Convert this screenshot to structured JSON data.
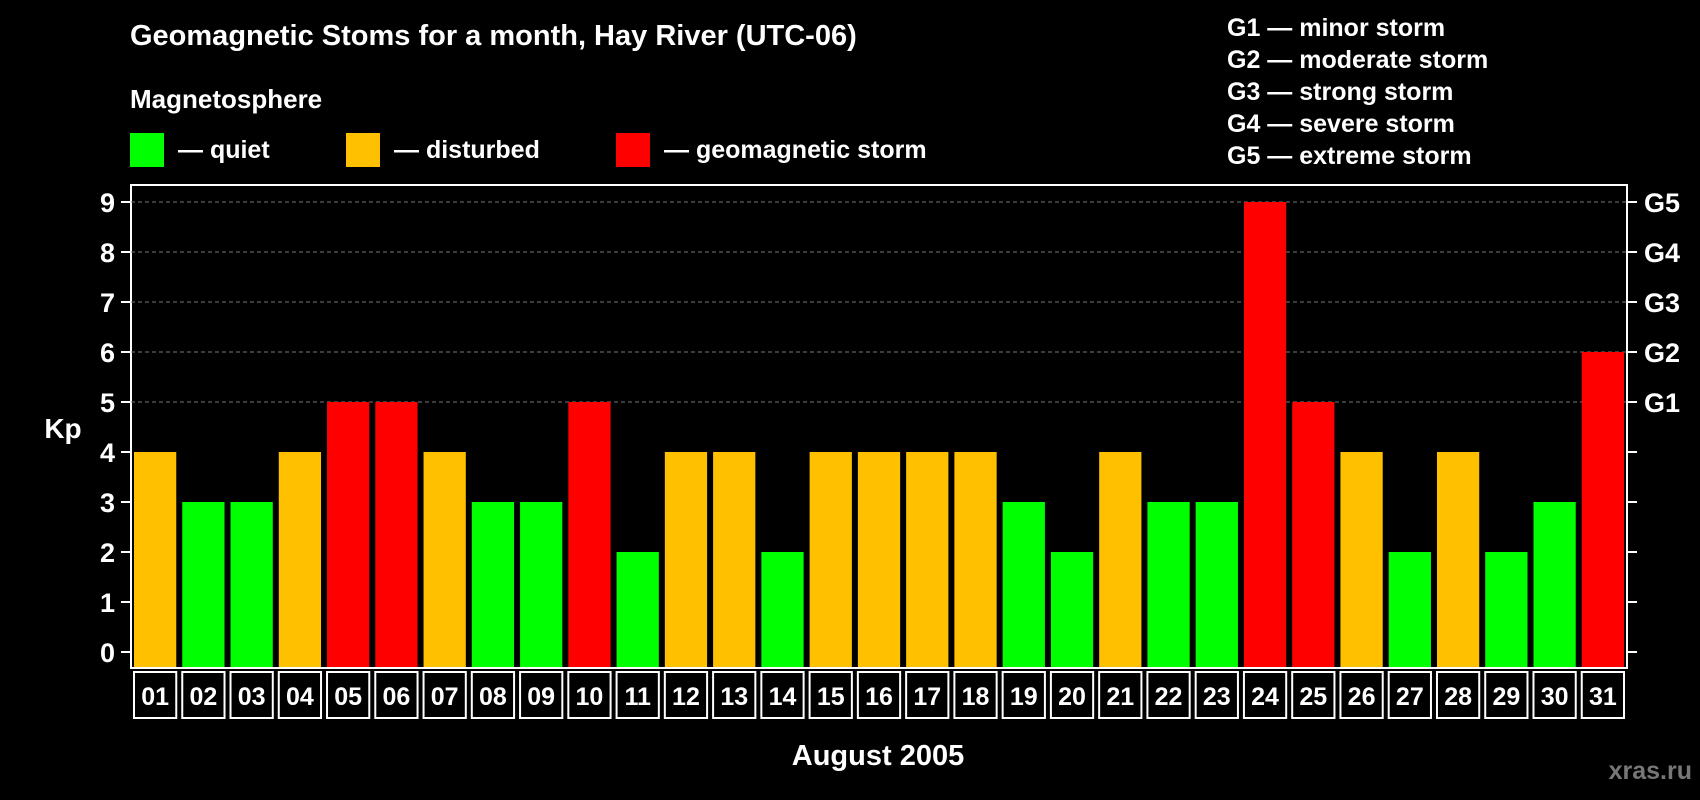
{
  "header": {
    "title": "Geomagnetic Stoms for a month, Hay River (UTC-06)",
    "subtitle": "Magnetosphere"
  },
  "legend": [
    {
      "label": "— quiet",
      "color": "#00ff00"
    },
    {
      "label": "— disturbed",
      "color": "#ffc000"
    },
    {
      "label": "— geomagnetic storm",
      "color": "#ff0000"
    }
  ],
  "gscale": [
    "G1 — minor storm",
    "G2 — moderate storm",
    "G3 — strong storm",
    "G4 — severe storm",
    "G5 — extreme storm"
  ],
  "watermark": "xras.ru",
  "chart_data": {
    "type": "bar",
    "title": "Geomagnetic Stoms for a month, Hay River (UTC-06)",
    "xlabel": "August 2005",
    "ylabel": "Kp",
    "ylim": [
      0,
      9
    ],
    "yticks": [
      "0",
      "1",
      "2",
      "3",
      "4",
      "5",
      "6",
      "7",
      "8",
      "9"
    ],
    "right_ticks": [
      {
        "label": "G1",
        "value": 5
      },
      {
        "label": "G2",
        "value": 6
      },
      {
        "label": "G3",
        "value": 7
      },
      {
        "label": "G4",
        "value": 8
      },
      {
        "label": "G5",
        "value": 9
      }
    ],
    "categories": [
      "01",
      "02",
      "03",
      "04",
      "05",
      "06",
      "07",
      "08",
      "09",
      "10",
      "11",
      "12",
      "13",
      "14",
      "15",
      "16",
      "17",
      "18",
      "19",
      "20",
      "21",
      "22",
      "23",
      "24",
      "25",
      "26",
      "27",
      "28",
      "29",
      "30",
      "31"
    ],
    "values": [
      4,
      3,
      3,
      4,
      5,
      5,
      4,
      3,
      3,
      5,
      2,
      4,
      4,
      2,
      4,
      4,
      4,
      4,
      3,
      2,
      4,
      3,
      3,
      9,
      5,
      4,
      2,
      4,
      2,
      3,
      6
    ],
    "colors": {
      "quiet": "#00ff00",
      "disturbed": "#ffc000",
      "storm": "#ff0000"
    }
  }
}
